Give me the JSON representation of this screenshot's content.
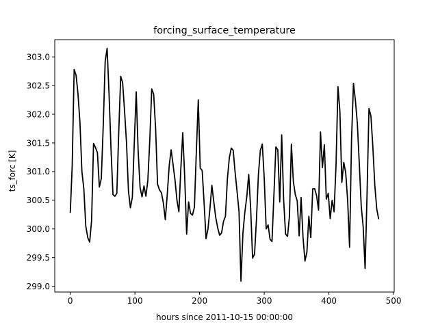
{
  "chart_data": {
    "type": "line",
    "title": "forcing_surface_temperature",
    "xlabel": "hours since 2011-10-15 00:00:00",
    "ylabel": "ts_forc [K]",
    "xlim": [
      -24,
      501
    ],
    "ylim": [
      298.9,
      303.3
    ],
    "xticks": [
      0,
      100,
      200,
      300,
      400,
      500
    ],
    "yticks": [
      299.0,
      299.5,
      300.0,
      300.5,
      301.0,
      301.5,
      302.0,
      302.5,
      303.0
    ],
    "xtick_labels": [
      "0",
      "100",
      "200",
      "300",
      "400",
      "500"
    ],
    "ytick_labels": [
      "299.0",
      "299.5",
      "300.0",
      "300.5",
      "301.0",
      "301.5",
      "302.0",
      "302.5",
      "303.0"
    ],
    "grid": false,
    "series": [
      {
        "color": "#000000",
        "x": [
          0,
          3,
          6,
          9,
          12,
          15,
          18,
          21,
          24,
          27,
          30,
          33,
          36,
          39,
          42,
          45,
          48,
          51,
          54,
          57,
          60,
          63,
          66,
          69,
          72,
          75,
          78,
          81,
          84,
          87,
          90,
          93,
          96,
          99,
          102,
          105,
          108,
          111,
          114,
          117,
          120,
          123,
          126,
          129,
          132,
          135,
          138,
          141,
          144,
          147,
          150,
          153,
          156,
          159,
          162,
          165,
          168,
          171,
          174,
          177,
          180,
          183,
          186,
          189,
          192,
          195,
          198,
          201,
          204,
          207,
          210,
          213,
          216,
          219,
          222,
          225,
          228,
          231,
          234,
          237,
          240,
          243,
          246,
          249,
          252,
          255,
          258,
          261,
          264,
          267,
          270,
          273,
          276,
          279,
          282,
          285,
          288,
          291,
          294,
          297,
          300,
          303,
          306,
          309,
          312,
          315,
          318,
          321,
          324,
          327,
          330,
          333,
          336,
          339,
          342,
          345,
          348,
          351,
          354,
          357,
          360,
          363,
          366,
          369,
          372,
          375,
          378,
          381,
          384,
          387,
          390,
          393,
          396,
          399,
          402,
          405,
          408,
          411,
          414,
          417,
          420,
          423,
          426,
          429,
          432,
          435,
          438,
          441,
          444,
          447,
          450,
          453,
          456,
          459,
          462,
          465,
          468,
          471,
          474,
          477
        ],
        "y": [
          300.28,
          301.1,
          302.78,
          302.68,
          302.35,
          301.85,
          301.0,
          300.7,
          300.05,
          299.85,
          299.77,
          300.15,
          301.49,
          301.42,
          301.33,
          300.73,
          300.88,
          301.8,
          302.92,
          303.15,
          302.35,
          301.4,
          300.6,
          300.57,
          300.62,
          301.7,
          302.66,
          302.55,
          302.05,
          301.5,
          300.66,
          300.37,
          300.55,
          301.5,
          302.39,
          301.35,
          300.72,
          300.56,
          300.75,
          300.57,
          300.85,
          301.55,
          302.44,
          302.35,
          301.75,
          300.78,
          300.68,
          300.63,
          300.45,
          300.16,
          300.6,
          301.1,
          301.38,
          301.12,
          300.85,
          300.5,
          300.3,
          301.05,
          301.68,
          300.9,
          299.91,
          300.47,
          300.27,
          300.24,
          300.38,
          301.35,
          302.25,
          301.06,
          301.02,
          300.45,
          299.83,
          300.0,
          300.35,
          300.76,
          300.47,
          300.2,
          300.02,
          299.89,
          299.93,
          300.13,
          300.22,
          300.87,
          301.24,
          301.41,
          301.37,
          300.98,
          300.65,
          300.3,
          299.09,
          299.92,
          300.29,
          300.56,
          300.95,
          300.36,
          299.49,
          299.56,
          300.17,
          300.95,
          301.37,
          301.48,
          300.88,
          300.0,
          300.07,
          299.82,
          299.78,
          300.6,
          301.43,
          301.38,
          300.47,
          301.64,
          300.51,
          299.91,
          299.87,
          300.22,
          301.48,
          300.83,
          300.6,
          300.49,
          299.88,
          300.55,
          299.85,
          299.44,
          299.6,
          300.22,
          299.85,
          300.7,
          300.7,
          300.58,
          300.33,
          301.69,
          301.07,
          301.47,
          300.52,
          300.62,
          300.18,
          300.5,
          300.3,
          301.1,
          302.48,
          302.05,
          300.81,
          301.16,
          300.98,
          300.5,
          299.68,
          301.55,
          302.54,
          302.24,
          301.84,
          301.14,
          300.4,
          300.04,
          299.31,
          300.6,
          302.1,
          301.97,
          301.43,
          300.76,
          300.35,
          300.17
        ]
      }
    ]
  }
}
